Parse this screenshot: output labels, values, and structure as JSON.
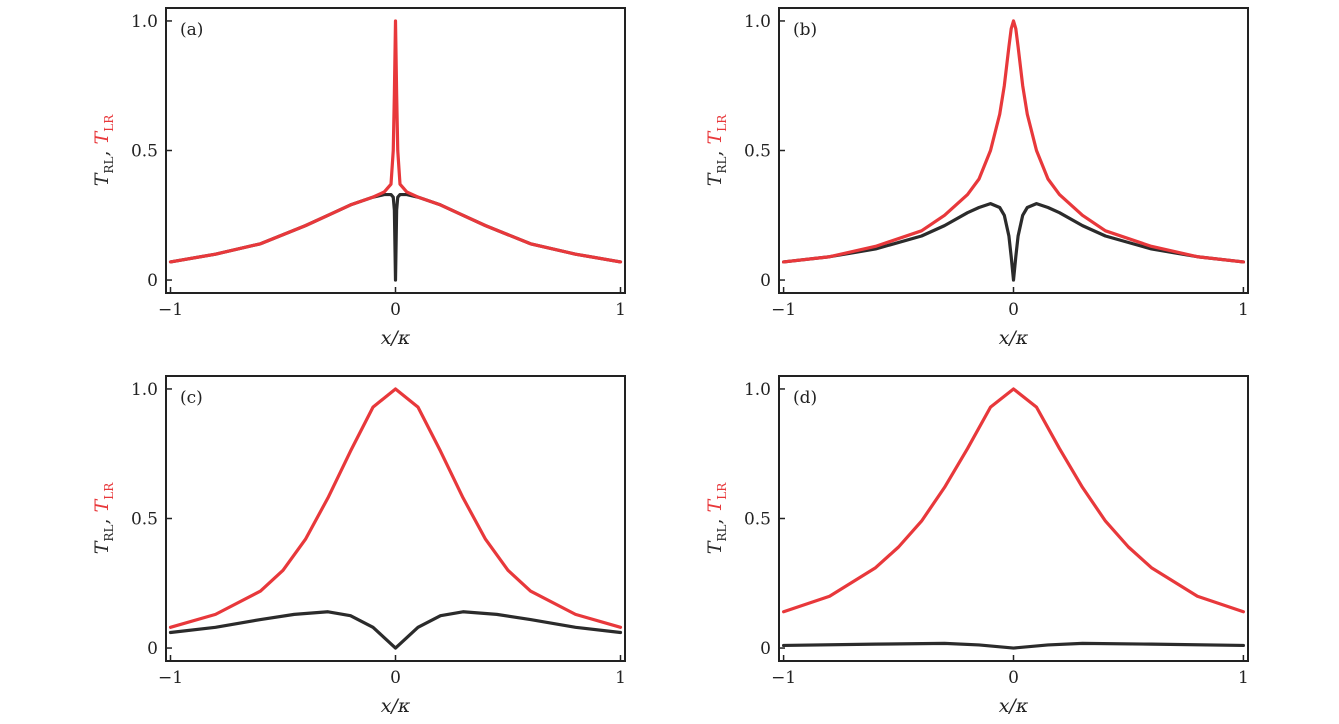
{
  "chart_data": [
    {
      "type": "line",
      "panel_label": "(a)",
      "xlabel": "x/κ",
      "ylabel": {
        "series1": {
          "main": "T",
          "sub": "RL"
        },
        "separator": ", ",
        "series2": {
          "main": "T",
          "sub": "LR"
        }
      },
      "xlim": [
        -1.02,
        1.02
      ],
      "ylim": [
        -0.05,
        1.05
      ],
      "xticks": [
        {
          "value": -1,
          "label": "−1"
        },
        {
          "value": 0,
          "label": "0"
        },
        {
          "value": 1,
          "label": "1"
        }
      ],
      "yticks": [
        {
          "value": 0,
          "label": "0"
        },
        {
          "value": 0.5,
          "label": "0.5"
        },
        {
          "value": 1.0,
          "label": "1.0"
        }
      ],
      "series": [
        {
          "name": "T_RL",
          "color": "#2b2b2b",
          "x": [
            -1,
            -0.8,
            -0.6,
            -0.4,
            -0.3,
            -0.2,
            -0.1,
            -0.05,
            -0.02,
            -0.01,
            -0.005,
            0,
            0.005,
            0.01,
            0.02,
            0.05,
            0.1,
            0.2,
            0.3,
            0.4,
            0.6,
            0.8,
            1
          ],
          "y": [
            0.07,
            0.1,
            0.14,
            0.21,
            0.25,
            0.29,
            0.32,
            0.33,
            0.33,
            0.32,
            0.27,
            0.0,
            0.27,
            0.32,
            0.33,
            0.33,
            0.32,
            0.29,
            0.25,
            0.21,
            0.14,
            0.1,
            0.07
          ]
        },
        {
          "name": "T_LR",
          "color": "#e8383b",
          "x": [
            -1,
            -0.8,
            -0.6,
            -0.4,
            -0.3,
            -0.2,
            -0.1,
            -0.05,
            -0.02,
            -0.01,
            -0.005,
            0,
            0.005,
            0.01,
            0.02,
            0.05,
            0.1,
            0.2,
            0.3,
            0.4,
            0.6,
            0.8,
            1
          ],
          "y": [
            0.07,
            0.1,
            0.14,
            0.21,
            0.25,
            0.29,
            0.32,
            0.34,
            0.37,
            0.5,
            0.72,
            1.0,
            0.72,
            0.5,
            0.37,
            0.34,
            0.32,
            0.29,
            0.25,
            0.21,
            0.14,
            0.1,
            0.07
          ]
        }
      ]
    },
    {
      "type": "line",
      "panel_label": "(b)",
      "xlabel": "x/κ",
      "ylabel": {
        "series1": {
          "main": "T",
          "sub": "RL"
        },
        "separator": ", ",
        "series2": {
          "main": "T",
          "sub": "LR"
        }
      },
      "xlim": [
        -1.02,
        1.02
      ],
      "ylim": [
        -0.05,
        1.05
      ],
      "xticks": [
        {
          "value": -1,
          "label": "−1"
        },
        {
          "value": 0,
          "label": "0"
        },
        {
          "value": 1,
          "label": "1"
        }
      ],
      "yticks": [
        {
          "value": 0,
          "label": "0"
        },
        {
          "value": 0.5,
          "label": "0.5"
        },
        {
          "value": 1.0,
          "label": "1.0"
        }
      ],
      "series": [
        {
          "name": "T_RL",
          "color": "#2b2b2b",
          "x": [
            -1,
            -0.8,
            -0.6,
            -0.4,
            -0.3,
            -0.2,
            -0.15,
            -0.1,
            -0.06,
            -0.04,
            -0.02,
            -0.01,
            0,
            0.01,
            0.02,
            0.04,
            0.06,
            0.1,
            0.15,
            0.2,
            0.3,
            0.4,
            0.6,
            0.8,
            1
          ],
          "y": [
            0.07,
            0.09,
            0.12,
            0.17,
            0.21,
            0.26,
            0.28,
            0.295,
            0.28,
            0.25,
            0.17,
            0.09,
            0.0,
            0.09,
            0.17,
            0.25,
            0.28,
            0.295,
            0.28,
            0.26,
            0.21,
            0.17,
            0.12,
            0.09,
            0.07
          ]
        },
        {
          "name": "T_LR",
          "color": "#e8383b",
          "x": [
            -1,
            -0.8,
            -0.6,
            -0.4,
            -0.3,
            -0.2,
            -0.15,
            -0.1,
            -0.06,
            -0.04,
            -0.02,
            -0.01,
            0,
            0.01,
            0.02,
            0.04,
            0.06,
            0.1,
            0.15,
            0.2,
            0.3,
            0.4,
            0.6,
            0.8,
            1
          ],
          "y": [
            0.07,
            0.09,
            0.13,
            0.19,
            0.25,
            0.33,
            0.39,
            0.5,
            0.64,
            0.75,
            0.9,
            0.97,
            1.0,
            0.97,
            0.9,
            0.75,
            0.64,
            0.5,
            0.39,
            0.33,
            0.25,
            0.19,
            0.13,
            0.09,
            0.07
          ]
        }
      ]
    },
    {
      "type": "line",
      "panel_label": "(c)",
      "xlabel": "x/κ",
      "ylabel": {
        "series1": {
          "main": "T",
          "sub": "RL"
        },
        "separator": ", ",
        "series2": {
          "main": "T",
          "sub": "LR"
        }
      },
      "xlim": [
        -1.02,
        1.02
      ],
      "ylim": [
        -0.05,
        1.05
      ],
      "xticks": [
        {
          "value": -1,
          "label": "−1"
        },
        {
          "value": 0,
          "label": "0"
        },
        {
          "value": 1,
          "label": "1"
        }
      ],
      "yticks": [
        {
          "value": 0,
          "label": "0"
        },
        {
          "value": 0.5,
          "label": "0.5"
        },
        {
          "value": 1.0,
          "label": "1.0"
        }
      ],
      "series": [
        {
          "name": "T_RL",
          "color": "#2b2b2b",
          "x": [
            -1,
            -0.8,
            -0.6,
            -0.45,
            -0.3,
            -0.2,
            -0.1,
            -0.05,
            0,
            0.05,
            0.1,
            0.2,
            0.3,
            0.45,
            0.6,
            0.8,
            1
          ],
          "y": [
            0.06,
            0.08,
            0.11,
            0.13,
            0.14,
            0.125,
            0.08,
            0.04,
            0.0,
            0.04,
            0.08,
            0.125,
            0.14,
            0.13,
            0.11,
            0.08,
            0.06
          ]
        },
        {
          "name": "T_LR",
          "color": "#e8383b",
          "x": [
            -1,
            -0.8,
            -0.6,
            -0.5,
            -0.4,
            -0.3,
            -0.2,
            -0.1,
            0,
            0.1,
            0.2,
            0.3,
            0.4,
            0.5,
            0.6,
            0.8,
            1
          ],
          "y": [
            0.08,
            0.13,
            0.22,
            0.3,
            0.42,
            0.58,
            0.76,
            0.93,
            1.0,
            0.93,
            0.76,
            0.58,
            0.42,
            0.3,
            0.22,
            0.13,
            0.08
          ]
        }
      ]
    },
    {
      "type": "line",
      "panel_label": "(d)",
      "xlabel": "x/κ",
      "ylabel": {
        "series1": {
          "main": "T",
          "sub": "RL"
        },
        "separator": ", ",
        "series2": {
          "main": "T",
          "sub": "LR"
        }
      },
      "xlim": [
        -1.02,
        1.02
      ],
      "ylim": [
        -0.05,
        1.05
      ],
      "xticks": [
        {
          "value": -1,
          "label": "−1"
        },
        {
          "value": 0,
          "label": "0"
        },
        {
          "value": 1,
          "label": "1"
        }
      ],
      "yticks": [
        {
          "value": 0,
          "label": "0"
        },
        {
          "value": 0.5,
          "label": "0.5"
        },
        {
          "value": 1.0,
          "label": "1.0"
        }
      ],
      "series": [
        {
          "name": "T_RL",
          "color": "#2b2b2b",
          "x": [
            -1,
            -0.6,
            -0.3,
            -0.15,
            0,
            0.15,
            0.3,
            0.6,
            1
          ],
          "y": [
            0.01,
            0.015,
            0.018,
            0.012,
            0.0,
            0.012,
            0.018,
            0.015,
            0.01
          ]
        },
        {
          "name": "T_LR",
          "color": "#e8383b",
          "x": [
            -1,
            -0.8,
            -0.6,
            -0.5,
            -0.4,
            -0.3,
            -0.2,
            -0.1,
            0,
            0.1,
            0.2,
            0.3,
            0.4,
            0.5,
            0.6,
            0.8,
            1
          ],
          "y": [
            0.14,
            0.2,
            0.31,
            0.39,
            0.49,
            0.62,
            0.77,
            0.93,
            1.0,
            0.93,
            0.77,
            0.62,
            0.49,
            0.39,
            0.31,
            0.2,
            0.14
          ]
        }
      ]
    }
  ]
}
